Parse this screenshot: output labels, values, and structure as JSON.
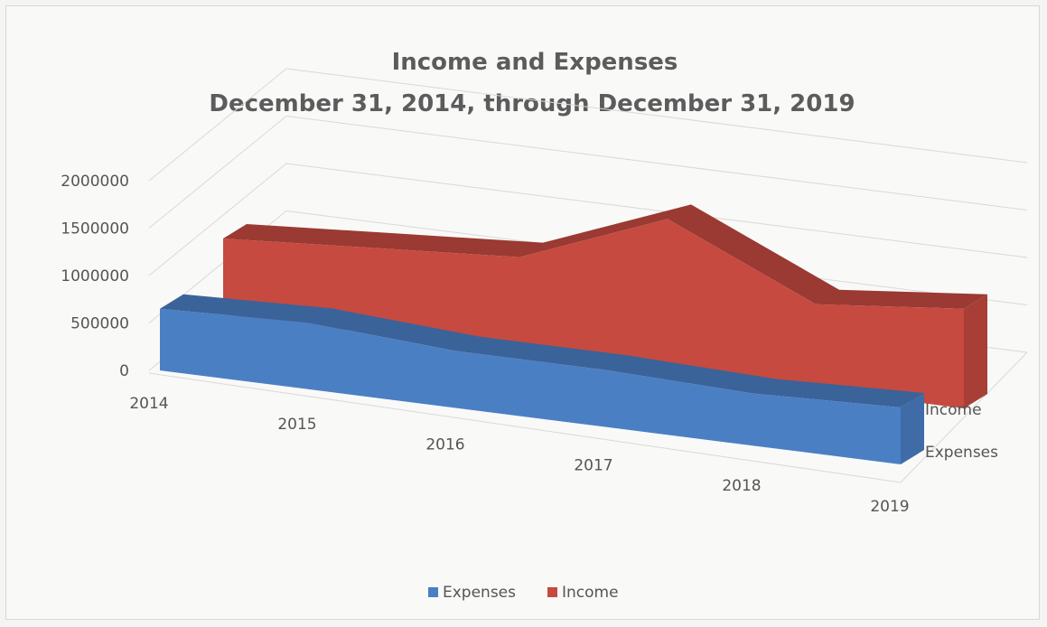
{
  "chart_data": {
    "type": "area",
    "title": "Income and Expenses",
    "subtitle": "December 31, 2014, through December 31, 2019",
    "categories": [
      "2014",
      "2015",
      "2016",
      "2017",
      "2018",
      "2019"
    ],
    "y_ticks": [
      "0",
      "500000",
      "1000000",
      "1500000",
      "2000000"
    ],
    "ylim": [
      0,
      2000000
    ],
    "grid": true,
    "legend_position": "bottom",
    "series": [
      {
        "name": "Expenses",
        "color": "#4a7fc4",
        "values": [
          650000,
          700000,
          600000,
          600000,
          550000,
          600000
        ]
      },
      {
        "name": "Income",
        "color": "#c64a40",
        "values": [
          800000,
          900000,
          1000000,
          1600000,
          900000,
          1050000
        ]
      }
    ],
    "depth_labels": [
      "Income",
      "Expenses"
    ],
    "legend": [
      "Expenses",
      "Income"
    ]
  }
}
